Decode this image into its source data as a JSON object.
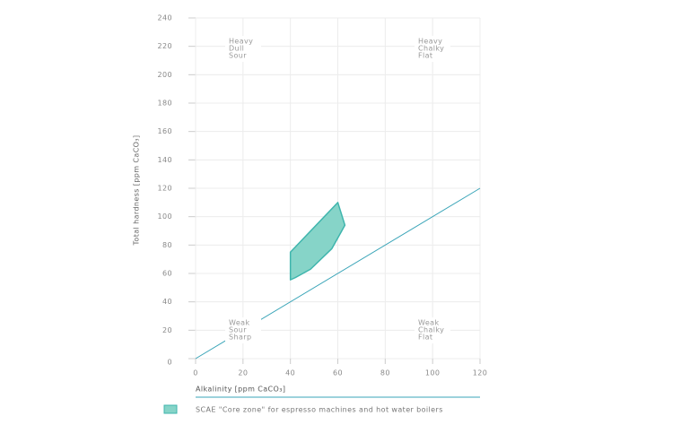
{
  "chart_data": {
    "type": "polygon",
    "xlabel": "Alkalinity [ppm CaCO₃]",
    "ylabel": "Total hardness [ppm CaCO₃]",
    "xlim": [
      0,
      120
    ],
    "xticks": [
      0,
      20,
      40,
      60,
      80,
      100,
      120
    ],
    "ylim": [
      0,
      240
    ],
    "yticks": [
      0,
      20,
      40,
      60,
      80,
      100,
      120,
      140,
      160,
      180,
      200,
      220,
      240
    ],
    "grid": true,
    "series": [
      {
        "name": "SCAE \"Core zone\" for espresso machines and hot water boilers",
        "color": "#3fb5ad",
        "fill": "#86d4c8",
        "x": [
          40,
          60,
          63,
          57.5,
          48.5,
          42,
          40
        ],
        "values": [
          75,
          110,
          94,
          77.5,
          63,
          57,
          55.5
        ]
      }
    ],
    "reference_line": {
      "color": "#3aa5b8",
      "x": [
        0,
        120
      ],
      "values": [
        0,
        120
      ]
    },
    "annotations": [
      [
        "Heavy",
        "Dull",
        "Sour"
      ],
      [
        "Heavy",
        "Chalky",
        "Flat"
      ],
      [
        "Weak",
        "Sour",
        "Sharp"
      ],
      [
        "Weak",
        "Chalky",
        "Flat"
      ]
    ]
  }
}
